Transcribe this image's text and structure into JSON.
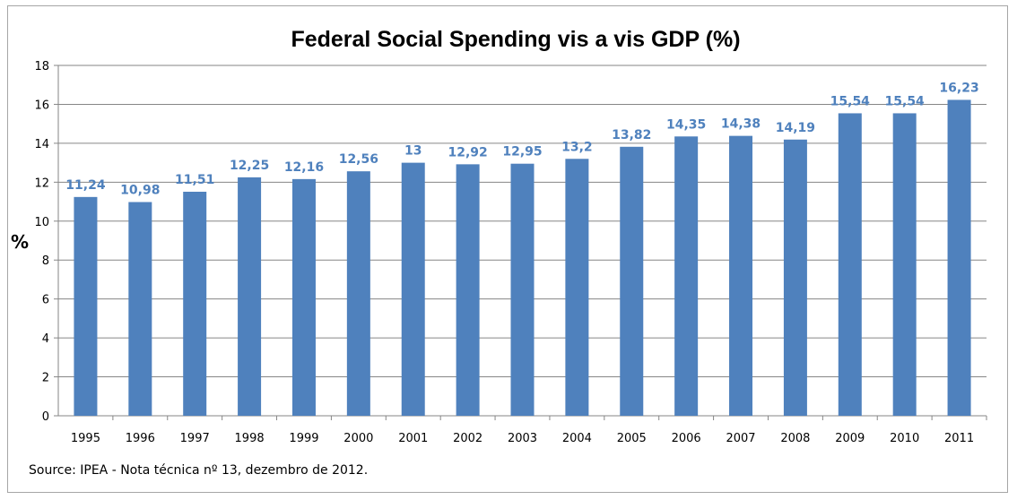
{
  "chart_data": {
    "type": "bar",
    "title": "Federal Social Spending vis a vis GDP (%)",
    "ylabel": "%",
    "xlabel": "",
    "ylim": [
      0,
      18
    ],
    "yticks": [
      0,
      2,
      4,
      6,
      8,
      10,
      12,
      14,
      16,
      18
    ],
    "grid": true,
    "bar_color": "#4f81bd",
    "label_color": "#4f81bd",
    "categories": [
      "1995",
      "1996",
      "1997",
      "1998",
      "1999",
      "2000",
      "2001",
      "2002",
      "2003",
      "2004",
      "2005",
      "2006",
      "2007",
      "2008",
      "2009",
      "2010",
      "2011"
    ],
    "values": [
      11.24,
      10.98,
      11.51,
      12.25,
      12.16,
      12.56,
      13,
      12.92,
      12.95,
      13.2,
      13.82,
      14.35,
      14.38,
      14.19,
      15.54,
      15.54,
      16.23
    ],
    "value_labels": [
      "11,24",
      "10,98",
      "11,51",
      "12,25",
      "12,16",
      "12,56",
      "13",
      "12,92",
      "12,95",
      "13,2",
      "13,82",
      "14,35",
      "14,38",
      "14,19",
      "15,54",
      "15,54",
      "16,23"
    ],
    "source": "Source: IPEA - Nota técnica nº 13, dezembro de 2012."
  }
}
